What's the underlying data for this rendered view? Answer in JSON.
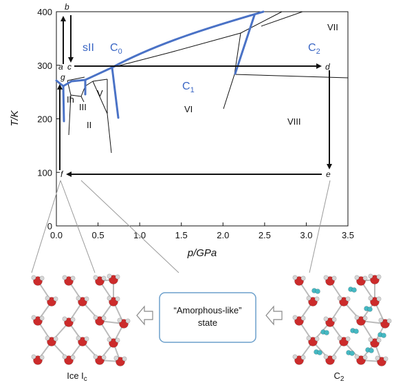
{
  "axes": {
    "xlabel": "p/GPa",
    "ylabel": "T/K",
    "xlim": [
      0,
      3.5
    ],
    "ylim": [
      0,
      400
    ],
    "xticks": [
      "0.0",
      "0.5",
      "1.0",
      "1.5",
      "2.0",
      "2.5",
      "3.0",
      "3.5"
    ],
    "yticks": [
      "0",
      "100",
      "200",
      "300",
      "400"
    ]
  },
  "phases": {
    "Ih": "Ih",
    "II": "II",
    "III": "III",
    "V": "V",
    "VI": "VI",
    "VII": "VII",
    "VIII": "VIII"
  },
  "cages": {
    "sII": "sII",
    "C0": "C",
    "C0_sub": "0",
    "C1": "C",
    "C1_sub": "1",
    "C2": "C",
    "C2_sub": "2"
  },
  "path_points": {
    "a": "a",
    "b": "b",
    "c": "c",
    "d": "d",
    "e": "e",
    "f": "f",
    "g": "g"
  },
  "bottom": {
    "amorphous_line1": "“Amorphous-like”",
    "amorphous_line2": "state",
    "left_caption_main": "Ice I",
    "left_caption_sub": "c",
    "right_caption_main": "C",
    "right_caption_sub": "2"
  },
  "colors": {
    "cage_lines": "#4a72c6",
    "oxygen": "#cc2b2b",
    "hydrogen": "#d7d7d7",
    "h2_guest": "#45b9c3",
    "box_border": "#6b9fcb"
  }
}
